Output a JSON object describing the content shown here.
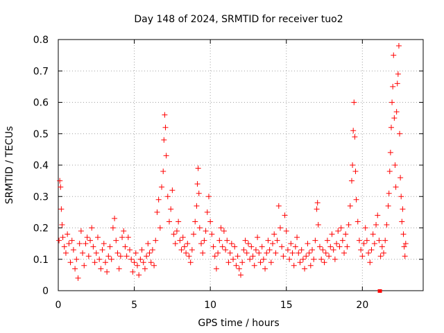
{
  "chart_data": {
    "type": "scatter",
    "title": "Day 148 of 2024, SRMTID for receiver tuo2",
    "xlabel": "GPS time / hours",
    "ylabel": "SRMTID / TECUs",
    "xlim": [
      0,
      24
    ],
    "ylim": [
      0,
      0.8
    ],
    "xticks": [
      0,
      5,
      10,
      15,
      20
    ],
    "xtick_labels": [
      "0",
      "5",
      "10",
      "15",
      "20"
    ],
    "yticks": [
      0,
      0.1,
      0.2,
      0.3,
      0.4,
      0.5,
      0.6,
      0.7,
      0.8
    ],
    "ytick_labels": [
      "0",
      "0.1",
      "0.2",
      "0.3",
      "0.4",
      "0.5",
      "0.6",
      "0.7",
      "0.8"
    ],
    "grid": true,
    "marker": "+",
    "color": "#ff0000",
    "series": [
      {
        "name": "SRMTID",
        "points": [
          [
            0.05,
            0.16
          ],
          [
            0.1,
            0.35
          ],
          [
            0.15,
            0.33
          ],
          [
            0.2,
            0.26
          ],
          [
            0.25,
            0.21
          ],
          [
            0.3,
            0.17
          ],
          [
            0.4,
            0.14
          ],
          [
            0.5,
            0.12
          ],
          [
            0.6,
            0.18
          ],
          [
            0.7,
            0.15
          ],
          [
            0.8,
            0.09
          ],
          [
            0.9,
            0.16
          ],
          [
            1.0,
            0.13
          ],
          [
            1.1,
            0.07
          ],
          [
            1.2,
            0.1
          ],
          [
            1.3,
            0.04
          ],
          [
            1.4,
            0.15
          ],
          [
            1.5,
            0.19
          ],
          [
            1.6,
            0.12
          ],
          [
            1.7,
            0.08
          ],
          [
            1.8,
            0.15
          ],
          [
            1.9,
            0.17
          ],
          [
            2.0,
            0.11
          ],
          [
            2.1,
            0.16
          ],
          [
            2.2,
            0.2
          ],
          [
            2.3,
            0.14
          ],
          [
            2.4,
            0.09
          ],
          [
            2.5,
            0.12
          ],
          [
            2.6,
            0.17
          ],
          [
            2.7,
            0.1
          ],
          [
            2.8,
            0.07
          ],
          [
            2.9,
            0.13
          ],
          [
            3.0,
            0.15
          ],
          [
            3.1,
            0.09
          ],
          [
            3.2,
            0.06
          ],
          [
            3.3,
            0.11
          ],
          [
            3.4,
            0.14
          ],
          [
            3.5,
            0.1
          ],
          [
            3.6,
            0.2
          ],
          [
            3.7,
            0.23
          ],
          [
            3.8,
            0.16
          ],
          [
            3.9,
            0.12
          ],
          [
            4.0,
            0.07
          ],
          [
            4.1,
            0.11
          ],
          [
            4.2,
            0.17
          ],
          [
            4.3,
            0.19
          ],
          [
            4.4,
            0.14
          ],
          [
            4.5,
            0.11
          ],
          [
            4.6,
            0.17
          ],
          [
            4.7,
            0.13
          ],
          [
            4.8,
            0.1
          ],
          [
            4.9,
            0.06
          ],
          [
            5.0,
            0.09
          ],
          [
            5.1,
            0.12
          ],
          [
            5.2,
            0.08
          ],
          [
            5.3,
            0.05
          ],
          [
            5.4,
            0.1
          ],
          [
            5.5,
            0.13
          ],
          [
            5.6,
            0.09
          ],
          [
            5.7,
            0.07
          ],
          [
            5.8,
            0.11
          ],
          [
            5.9,
            0.15
          ],
          [
            6.0,
            0.12
          ],
          [
            6.1,
            0.09
          ],
          [
            6.2,
            0.13
          ],
          [
            6.3,
            0.08
          ],
          [
            6.4,
            0.16
          ],
          [
            6.5,
            0.25
          ],
          [
            6.6,
            0.29
          ],
          [
            6.7,
            0.2
          ],
          [
            6.8,
            0.33
          ],
          [
            6.9,
            0.38
          ],
          [
            6.95,
            0.48
          ],
          [
            7.0,
            0.56
          ],
          [
            7.05,
            0.52
          ],
          [
            7.1,
            0.43
          ],
          [
            7.2,
            0.3
          ],
          [
            7.3,
            0.22
          ],
          [
            7.4,
            0.26
          ],
          [
            7.5,
            0.32
          ],
          [
            7.6,
            0.18
          ],
          [
            7.7,
            0.15
          ],
          [
            7.8,
            0.19
          ],
          [
            7.9,
            0.22
          ],
          [
            8.0,
            0.16
          ],
          [
            8.1,
            0.13
          ],
          [
            8.2,
            0.17
          ],
          [
            8.3,
            0.14
          ],
          [
            8.4,
            0.12
          ],
          [
            8.5,
            0.15
          ],
          [
            8.6,
            0.11
          ],
          [
            8.7,
            0.09
          ],
          [
            8.8,
            0.13
          ],
          [
            8.9,
            0.18
          ],
          [
            9.0,
            0.22
          ],
          [
            9.1,
            0.27
          ],
          [
            9.15,
            0.34
          ],
          [
            9.2,
            0.39
          ],
          [
            9.25,
            0.31
          ],
          [
            9.3,
            0.2
          ],
          [
            9.4,
            0.15
          ],
          [
            9.5,
            0.12
          ],
          [
            9.6,
            0.16
          ],
          [
            9.7,
            0.19
          ],
          [
            9.8,
            0.25
          ],
          [
            9.9,
            0.3
          ],
          [
            10.0,
            0.22
          ],
          [
            10.1,
            0.18
          ],
          [
            10.2,
            0.14
          ],
          [
            10.3,
            0.11
          ],
          [
            10.4,
            0.07
          ],
          [
            10.5,
            0.12
          ],
          [
            10.6,
            0.16
          ],
          [
            10.7,
            0.2
          ],
          [
            10.8,
            0.14
          ],
          [
            10.9,
            0.19
          ],
          [
            11.0,
            0.13
          ],
          [
            11.1,
            0.16
          ],
          [
            11.2,
            0.09
          ],
          [
            11.3,
            0.12
          ],
          [
            11.4,
            0.15
          ],
          [
            11.5,
            0.1
          ],
          [
            11.6,
            0.14
          ],
          [
            11.7,
            0.08
          ],
          [
            11.8,
            0.11
          ],
          [
            11.9,
            0.07
          ],
          [
            12.0,
            0.05
          ],
          [
            12.1,
            0.09
          ],
          [
            12.2,
            0.13
          ],
          [
            12.3,
            0.16
          ],
          [
            12.4,
            0.12
          ],
          [
            12.5,
            0.15
          ],
          [
            12.6,
            0.1
          ],
          [
            12.7,
            0.14
          ],
          [
            12.8,
            0.11
          ],
          [
            12.9,
            0.08
          ],
          [
            13.0,
            0.13
          ],
          [
            13.1,
            0.17
          ],
          [
            13.2,
            0.12
          ],
          [
            13.3,
            0.09
          ],
          [
            13.4,
            0.14
          ],
          [
            13.5,
            0.1
          ],
          [
            13.6,
            0.07
          ],
          [
            13.7,
            0.12
          ],
          [
            13.8,
            0.16
          ],
          [
            13.9,
            0.13
          ],
          [
            14.0,
            0.09
          ],
          [
            14.1,
            0.15
          ],
          [
            14.2,
            0.18
          ],
          [
            14.3,
            0.12
          ],
          [
            14.4,
            0.16
          ],
          [
            14.5,
            0.27
          ],
          [
            14.6,
            0.2
          ],
          [
            14.7,
            0.14
          ],
          [
            14.8,
            0.11
          ],
          [
            14.9,
            0.24
          ],
          [
            15.0,
            0.19
          ],
          [
            15.1,
            0.13
          ],
          [
            15.2,
            0.1
          ],
          [
            15.3,
            0.15
          ],
          [
            15.4,
            0.12
          ],
          [
            15.5,
            0.08
          ],
          [
            15.6,
            0.14
          ],
          [
            15.7,
            0.17
          ],
          [
            15.8,
            0.12
          ],
          [
            15.9,
            0.09
          ],
          [
            16.0,
            0.13
          ],
          [
            16.1,
            0.1
          ],
          [
            16.2,
            0.07
          ],
          [
            16.3,
            0.11
          ],
          [
            16.4,
            0.15
          ],
          [
            16.5,
            0.12
          ],
          [
            16.6,
            0.08
          ],
          [
            16.7,
            0.13
          ],
          [
            16.8,
            0.1
          ],
          [
            16.9,
            0.16
          ],
          [
            17.0,
            0.26
          ],
          [
            17.05,
            0.28
          ],
          [
            17.1,
            0.21
          ],
          [
            17.2,
            0.14
          ],
          [
            17.3,
            0.1
          ],
          [
            17.4,
            0.13
          ],
          [
            17.5,
            0.09
          ],
          [
            17.6,
            0.12
          ],
          [
            17.7,
            0.16
          ],
          [
            17.8,
            0.11
          ],
          [
            17.9,
            0.14
          ],
          [
            18.0,
            0.18
          ],
          [
            18.1,
            0.13
          ],
          [
            18.2,
            0.1
          ],
          [
            18.3,
            0.15
          ],
          [
            18.4,
            0.19
          ],
          [
            18.5,
            0.14
          ],
          [
            18.6,
            0.2
          ],
          [
            18.7,
            0.16
          ],
          [
            18.8,
            0.12
          ],
          [
            18.9,
            0.18
          ],
          [
            19.0,
            0.14
          ],
          [
            19.1,
            0.21
          ],
          [
            19.2,
            0.27
          ],
          [
            19.3,
            0.35
          ],
          [
            19.35,
            0.4
          ],
          [
            19.4,
            0.51
          ],
          [
            19.45,
            0.6
          ],
          [
            19.5,
            0.49
          ],
          [
            19.55,
            0.38
          ],
          [
            19.6,
            0.29
          ],
          [
            19.7,
            0.22
          ],
          [
            19.8,
            0.16
          ],
          [
            19.9,
            0.13
          ],
          [
            20.0,
            0.11
          ],
          [
            20.1,
            0.15
          ],
          [
            20.2,
            0.2
          ],
          [
            20.3,
            0.16
          ],
          [
            20.4,
            0.12
          ],
          [
            20.5,
            0.09
          ],
          [
            20.6,
            0.13
          ],
          [
            20.7,
            0.18
          ],
          [
            20.8,
            0.15
          ],
          [
            20.9,
            0.21
          ],
          [
            21.0,
            0.24
          ],
          [
            21.1,
            0.16
          ],
          [
            21.2,
            0.11
          ],
          [
            21.3,
            0.14
          ],
          [
            21.4,
            0.12
          ],
          [
            21.5,
            0.16
          ],
          [
            21.6,
            0.21
          ],
          [
            21.7,
            0.27
          ],
          [
            21.75,
            0.31
          ],
          [
            21.8,
            0.38
          ],
          [
            21.85,
            0.44
          ],
          [
            21.9,
            0.52
          ],
          [
            21.95,
            0.6
          ],
          [
            22.0,
            0.65
          ],
          [
            22.05,
            0.75
          ],
          [
            22.1,
            0.55
          ],
          [
            22.15,
            0.4
          ],
          [
            22.2,
            0.33
          ],
          [
            22.25,
            0.57
          ],
          [
            22.3,
            0.66
          ],
          [
            22.35,
            0.69
          ],
          [
            22.4,
            0.78
          ],
          [
            22.45,
            0.5
          ],
          [
            22.5,
            0.36
          ],
          [
            22.55,
            0.3
          ],
          [
            22.6,
            0.22
          ],
          [
            22.65,
            0.26
          ],
          [
            22.7,
            0.18
          ],
          [
            22.75,
            0.14
          ],
          [
            22.8,
            0.11
          ],
          [
            22.85,
            0.15
          ]
        ]
      }
    ],
    "outliers": [
      [
        21.15,
        0.0
      ]
    ]
  }
}
